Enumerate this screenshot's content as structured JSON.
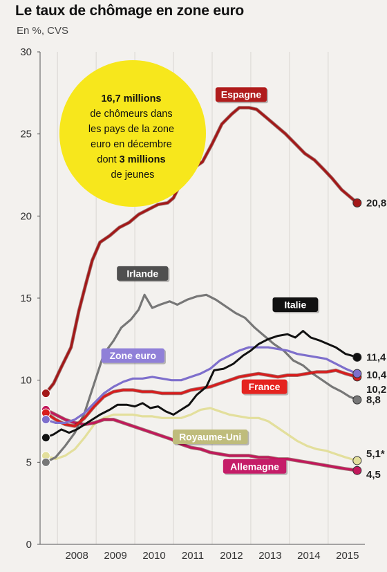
{
  "header": {
    "title": "Le taux de chômage en zone euro",
    "subtitle": "En %, CVS"
  },
  "bubble": {
    "line1": "16,7 millions",
    "line2": "de chômeurs dans",
    "line3": "les pays de la zone",
    "line4": "euro en décembre",
    "line5a": "dont ",
    "line5b": "3 millions",
    "line6": "de jeunes",
    "color": "#f7e71c"
  },
  "chart_data": {
    "type": "line",
    "title": "Le taux de chômage en zone euro",
    "ylabel": "En %, CVS",
    "ylim": [
      0,
      30
    ],
    "yticks": [
      "0",
      "5",
      "10",
      "15",
      "20",
      "25",
      "30"
    ],
    "xlim": [
      2007.55,
      2015.95
    ],
    "xticks": [
      "2008",
      "2009",
      "2010",
      "2011",
      "2012",
      "2013",
      "2014",
      "2015"
    ],
    "grid": "vertical",
    "series": [
      {
        "name": "Espagne",
        "color": "#a31818",
        "label_bg": "#b01c1c",
        "label_fg": "#ffffff",
        "end_label": "20,8",
        "label_pos": [
          2012.75,
          27.4
        ],
        "points": [
          [
            2007.7,
            9.2
          ],
          [
            2007.9,
            9.8
          ],
          [
            2008.1,
            10.8
          ],
          [
            2008.35,
            12.0
          ],
          [
            2008.55,
            14.2
          ],
          [
            2008.75,
            16.0
          ],
          [
            2008.9,
            17.3
          ],
          [
            2009.1,
            18.4
          ],
          [
            2009.35,
            18.8
          ],
          [
            2009.6,
            19.3
          ],
          [
            2009.85,
            19.6
          ],
          [
            2010.1,
            20.1
          ],
          [
            2010.35,
            20.4
          ],
          [
            2010.6,
            20.7
          ],
          [
            2010.85,
            20.8
          ],
          [
            2011.0,
            21.1
          ],
          [
            2011.25,
            22.3
          ],
          [
            2011.5,
            22.9
          ],
          [
            2011.75,
            23.3
          ],
          [
            2012.0,
            24.4
          ],
          [
            2012.25,
            25.6
          ],
          [
            2012.5,
            26.2
          ],
          [
            2012.7,
            26.6
          ],
          [
            2012.95,
            26.6
          ],
          [
            2013.15,
            26.5
          ],
          [
            2013.4,
            26.0
          ],
          [
            2013.65,
            25.5
          ],
          [
            2013.9,
            25.0
          ],
          [
            2014.15,
            24.4
          ],
          [
            2014.4,
            23.8
          ],
          [
            2014.65,
            23.4
          ],
          [
            2014.9,
            22.8
          ],
          [
            2015.1,
            22.3
          ],
          [
            2015.35,
            21.6
          ],
          [
            2015.55,
            21.2
          ],
          [
            2015.75,
            20.8
          ]
        ]
      },
      {
        "name": "Irlande",
        "color": "#777777",
        "label_bg": "#4f4f4f",
        "label_fg": "#ffffff",
        "end_label": "8,8",
        "label_pos": [
          2010.2,
          16.5
        ],
        "points": [
          [
            2007.7,
            5.0
          ],
          [
            2007.95,
            5.3
          ],
          [
            2008.2,
            6.0
          ],
          [
            2008.45,
            6.8
          ],
          [
            2008.7,
            8.0
          ],
          [
            2008.95,
            9.8
          ],
          [
            2009.2,
            11.6
          ],
          [
            2009.45,
            12.4
          ],
          [
            2009.65,
            13.2
          ],
          [
            2009.9,
            13.7
          ],
          [
            2010.1,
            14.3
          ],
          [
            2010.25,
            15.2
          ],
          [
            2010.45,
            14.4
          ],
          [
            2010.65,
            14.6
          ],
          [
            2010.9,
            14.8
          ],
          [
            2011.1,
            14.6
          ],
          [
            2011.35,
            14.9
          ],
          [
            2011.6,
            15.1
          ],
          [
            2011.85,
            15.2
          ],
          [
            2012.1,
            14.9
          ],
          [
            2012.35,
            14.5
          ],
          [
            2012.6,
            14.1
          ],
          [
            2012.85,
            13.8
          ],
          [
            2013.1,
            13.2
          ],
          [
            2013.35,
            12.7
          ],
          [
            2013.6,
            12.2
          ],
          [
            2013.85,
            11.8
          ],
          [
            2014.1,
            11.2
          ],
          [
            2014.35,
            10.9
          ],
          [
            2014.6,
            10.4
          ],
          [
            2014.85,
            10.0
          ],
          [
            2015.1,
            9.6
          ],
          [
            2015.35,
            9.3
          ],
          [
            2015.55,
            9.0
          ],
          [
            2015.75,
            8.8
          ]
        ]
      },
      {
        "name": "Italie",
        "color": "#111111",
        "label_bg": "#111111",
        "label_fg": "#ffffff",
        "end_label": "11,4",
        "label_pos": [
          2014.15,
          14.6
        ],
        "points": [
          [
            2007.7,
            6.5
          ],
          [
            2007.9,
            6.7
          ],
          [
            2008.1,
            7.0
          ],
          [
            2008.3,
            6.8
          ],
          [
            2008.5,
            7.0
          ],
          [
            2008.7,
            7.3
          ],
          [
            2008.9,
            7.6
          ],
          [
            2009.1,
            7.9
          ],
          [
            2009.35,
            8.2
          ],
          [
            2009.55,
            8.5
          ],
          [
            2009.8,
            8.5
          ],
          [
            2010.0,
            8.4
          ],
          [
            2010.2,
            8.6
          ],
          [
            2010.4,
            8.3
          ],
          [
            2010.6,
            8.4
          ],
          [
            2010.8,
            8.1
          ],
          [
            2011.0,
            7.9
          ],
          [
            2011.2,
            8.2
          ],
          [
            2011.4,
            8.5
          ],
          [
            2011.6,
            9.1
          ],
          [
            2011.85,
            9.6
          ],
          [
            2012.05,
            10.6
          ],
          [
            2012.3,
            10.7
          ],
          [
            2012.55,
            11.0
          ],
          [
            2012.8,
            11.5
          ],
          [
            2013.0,
            11.8
          ],
          [
            2013.2,
            12.2
          ],
          [
            2013.45,
            12.5
          ],
          [
            2013.7,
            12.7
          ],
          [
            2013.95,
            12.8
          ],
          [
            2014.15,
            12.6
          ],
          [
            2014.35,
            13.0
          ],
          [
            2014.55,
            12.6
          ],
          [
            2014.8,
            12.4
          ],
          [
            2015.0,
            12.2
          ],
          [
            2015.2,
            12.0
          ],
          [
            2015.45,
            11.6
          ],
          [
            2015.75,
            11.4
          ]
        ]
      },
      {
        "name": "Zone euro",
        "color": "#7e6fcc",
        "label_bg": "#9080d8",
        "label_fg": "#ffffff",
        "end_label": "10,4",
        "label_pos": [
          2009.95,
          11.5
        ],
        "points": [
          [
            2007.7,
            7.6
          ],
          [
            2007.95,
            7.4
          ],
          [
            2008.2,
            7.4
          ],
          [
            2008.45,
            7.6
          ],
          [
            2008.7,
            8.0
          ],
          [
            2008.95,
            8.6
          ],
          [
            2009.2,
            9.2
          ],
          [
            2009.45,
            9.6
          ],
          [
            2009.7,
            9.9
          ],
          [
            2009.95,
            10.1
          ],
          [
            2010.2,
            10.1
          ],
          [
            2010.45,
            10.2
          ],
          [
            2010.7,
            10.1
          ],
          [
            2010.95,
            10.0
          ],
          [
            2011.2,
            10.0
          ],
          [
            2011.45,
            10.2
          ],
          [
            2011.7,
            10.4
          ],
          [
            2011.95,
            10.7
          ],
          [
            2012.2,
            11.2
          ],
          [
            2012.45,
            11.5
          ],
          [
            2012.7,
            11.8
          ],
          [
            2012.95,
            12.0
          ],
          [
            2013.2,
            12.0
          ],
          [
            2013.45,
            12.0
          ],
          [
            2013.7,
            11.9
          ],
          [
            2013.95,
            11.8
          ],
          [
            2014.2,
            11.6
          ],
          [
            2014.45,
            11.5
          ],
          [
            2014.7,
            11.4
          ],
          [
            2014.95,
            11.3
          ],
          [
            2015.2,
            11.0
          ],
          [
            2015.45,
            10.7
          ],
          [
            2015.75,
            10.4
          ]
        ]
      },
      {
        "name": "France",
        "color": "#d81d1d",
        "label_bg": "#e5231f",
        "label_fg": "#ffffff",
        "end_label": "10,2",
        "label_pos": [
          2013.35,
          9.6
        ],
        "points": [
          [
            2007.7,
            8.0
          ],
          [
            2007.95,
            7.6
          ],
          [
            2008.2,
            7.3
          ],
          [
            2008.45,
            7.2
          ],
          [
            2008.7,
            7.7
          ],
          [
            2008.95,
            8.4
          ],
          [
            2009.2,
            9.0
          ],
          [
            2009.45,
            9.3
          ],
          [
            2009.7,
            9.4
          ],
          [
            2009.95,
            9.4
          ],
          [
            2010.2,
            9.3
          ],
          [
            2010.45,
            9.3
          ],
          [
            2010.7,
            9.2
          ],
          [
            2010.95,
            9.2
          ],
          [
            2011.2,
            9.2
          ],
          [
            2011.45,
            9.4
          ],
          [
            2011.7,
            9.5
          ],
          [
            2011.95,
            9.6
          ],
          [
            2012.2,
            9.8
          ],
          [
            2012.45,
            10.0
          ],
          [
            2012.7,
            10.2
          ],
          [
            2012.95,
            10.3
          ],
          [
            2013.2,
            10.4
          ],
          [
            2013.45,
            10.3
          ],
          [
            2013.7,
            10.2
          ],
          [
            2013.95,
            10.3
          ],
          [
            2014.2,
            10.3
          ],
          [
            2014.45,
            10.4
          ],
          [
            2014.7,
            10.5
          ],
          [
            2014.95,
            10.5
          ],
          [
            2015.2,
            10.6
          ],
          [
            2015.45,
            10.4
          ],
          [
            2015.75,
            10.2
          ]
        ]
      },
      {
        "name": "Royaume-Uni",
        "color": "#e3df9c",
        "label_bg": "#bfbc7c",
        "label_fg": "#ffffff",
        "end_label": "5,1*",
        "label_pos": [
          2011.95,
          6.55
        ],
        "points": [
          [
            2007.7,
            5.4
          ],
          [
            2007.95,
            5.2
          ],
          [
            2008.2,
            5.4
          ],
          [
            2008.45,
            5.8
          ],
          [
            2008.7,
            6.5
          ],
          [
            2008.95,
            7.3
          ],
          [
            2009.2,
            7.7
          ],
          [
            2009.45,
            7.9
          ],
          [
            2009.7,
            7.9
          ],
          [
            2009.95,
            7.9
          ],
          [
            2010.2,
            7.8
          ],
          [
            2010.45,
            7.8
          ],
          [
            2010.7,
            7.7
          ],
          [
            2010.95,
            7.7
          ],
          [
            2011.2,
            7.7
          ],
          [
            2011.45,
            7.9
          ],
          [
            2011.7,
            8.2
          ],
          [
            2011.95,
            8.3
          ],
          [
            2012.2,
            8.1
          ],
          [
            2012.45,
            7.9
          ],
          [
            2012.7,
            7.8
          ],
          [
            2012.95,
            7.7
          ],
          [
            2013.2,
            7.7
          ],
          [
            2013.45,
            7.5
          ],
          [
            2013.7,
            7.1
          ],
          [
            2013.95,
            6.7
          ],
          [
            2014.2,
            6.3
          ],
          [
            2014.45,
            6.0
          ],
          [
            2014.7,
            5.8
          ],
          [
            2014.95,
            5.7
          ],
          [
            2015.2,
            5.5
          ],
          [
            2015.45,
            5.3
          ],
          [
            2015.75,
            5.1
          ]
        ]
      },
      {
        "name": "Allemagne",
        "color": "#c2185b",
        "label_bg": "#c51d68",
        "label_fg": "#ffffff",
        "end_label": "4,5",
        "label_pos": [
          2013.1,
          4.75
        ],
        "points": [
          [
            2007.7,
            8.2
          ],
          [
            2007.95,
            7.9
          ],
          [
            2008.2,
            7.6
          ],
          [
            2008.45,
            7.4
          ],
          [
            2008.7,
            7.3
          ],
          [
            2008.95,
            7.4
          ],
          [
            2009.2,
            7.6
          ],
          [
            2009.45,
            7.6
          ],
          [
            2009.7,
            7.4
          ],
          [
            2009.95,
            7.2
          ],
          [
            2010.2,
            7.0
          ],
          [
            2010.45,
            6.8
          ],
          [
            2010.7,
            6.6
          ],
          [
            2010.95,
            6.4
          ],
          [
            2011.2,
            6.1
          ],
          [
            2011.45,
            5.9
          ],
          [
            2011.7,
            5.8
          ],
          [
            2011.95,
            5.6
          ],
          [
            2012.2,
            5.5
          ],
          [
            2012.45,
            5.4
          ],
          [
            2012.7,
            5.4
          ],
          [
            2012.95,
            5.4
          ],
          [
            2013.2,
            5.3
          ],
          [
            2013.45,
            5.3
          ],
          [
            2013.7,
            5.2
          ],
          [
            2013.95,
            5.2
          ],
          [
            2014.2,
            5.1
          ],
          [
            2014.45,
            5.0
          ],
          [
            2014.7,
            4.9
          ],
          [
            2014.95,
            4.8
          ],
          [
            2015.2,
            4.7
          ],
          [
            2015.45,
            4.6
          ],
          [
            2015.75,
            4.5
          ]
        ]
      }
    ]
  }
}
